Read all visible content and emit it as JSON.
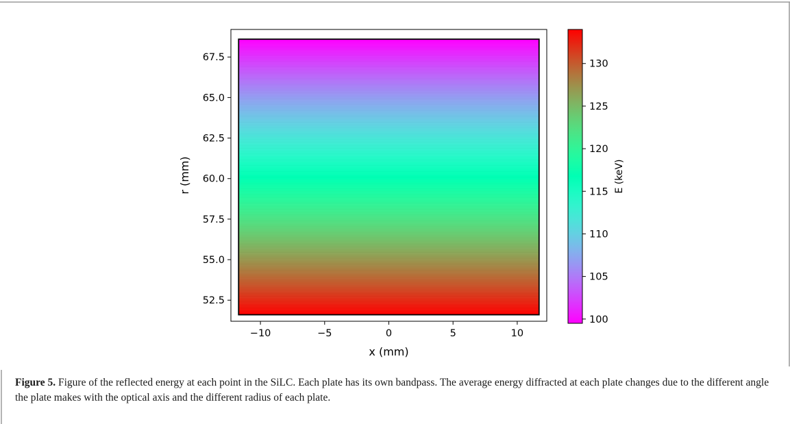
{
  "caption": {
    "label": "Figure 5.",
    "text": "Figure of the reflected energy at each point in the SiLC. Each plate has its own bandpass. The average energy diffracted at each plate changes due to the different angle the plate makes with the optical axis and the different radius of each plate."
  },
  "chart_data": {
    "type": "heatmap",
    "xlabel": "x (mm)",
    "ylabel": "r (mm)",
    "xlim": [
      -12.3,
      12.3
    ],
    "ylim": [
      51.2,
      69.2
    ],
    "x_ticks": [
      -10,
      -5,
      0,
      5,
      10
    ],
    "x_tick_labels": [
      "−10",
      "−5",
      "0",
      "5",
      "10"
    ],
    "y_ticks": [
      52.5,
      55.0,
      57.5,
      60.0,
      62.5,
      65.0,
      67.5
    ],
    "y_tick_labels": [
      "52.5",
      "55.0",
      "57.5",
      "60.0",
      "62.5",
      "65.0",
      "67.5"
    ],
    "data_extent": {
      "x": [
        -11.7,
        11.7
      ],
      "r": [
        51.6,
        68.6
      ]
    },
    "energy_at_r": {
      "r": [
        51.6,
        68.6
      ],
      "energy_keV": [
        134,
        99.5
      ]
    },
    "colormap": "rainbow",
    "colorbar": {
      "label": "E (keV)",
      "range": [
        99.5,
        134
      ],
      "ticks": [
        100,
        105,
        110,
        115,
        120,
        125,
        130
      ],
      "tick_labels": [
        "100",
        "105",
        "110",
        "115",
        "120",
        "125",
        "130"
      ]
    },
    "grid": false
  }
}
